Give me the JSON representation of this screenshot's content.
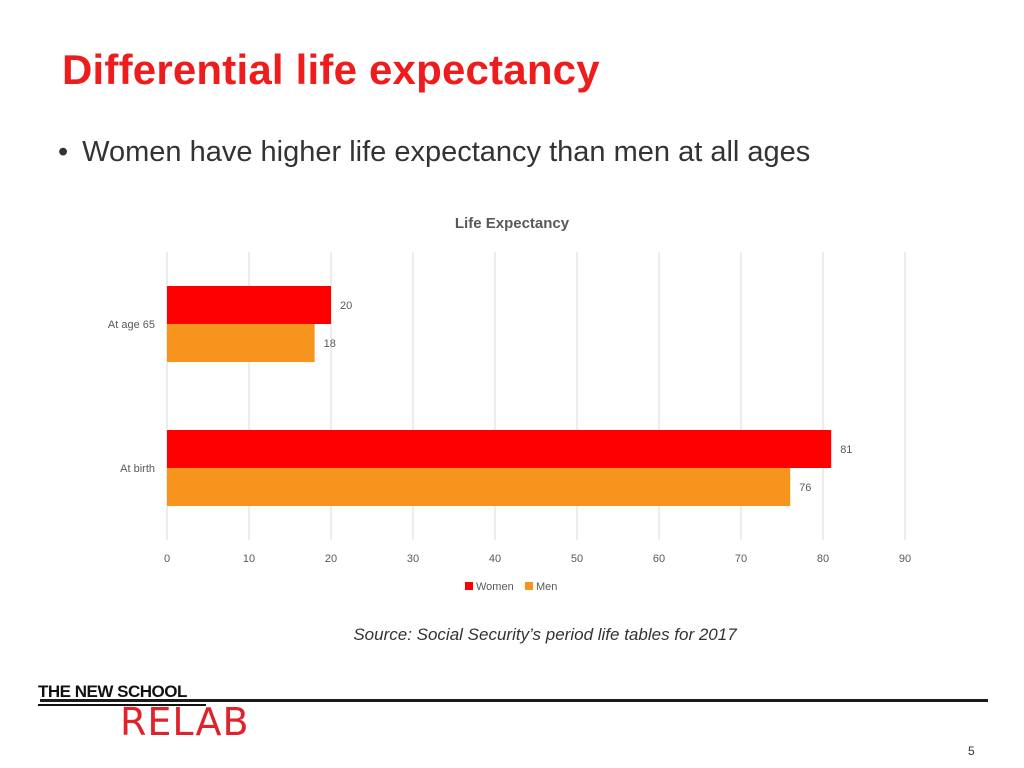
{
  "slide": {
    "title": "Differential life expectancy",
    "bullet": "Women have higher life expectancy than men at all ages",
    "bullet_marker": "•",
    "source": "Source: Social Security’s period life tables for 2017",
    "page_number": "5"
  },
  "logo": {
    "line1": "THE NEW SCHOOL",
    "line2": "RELAB"
  },
  "colors": {
    "title": "#ee1c1c",
    "women": "#ff0000",
    "men": "#f7941d",
    "grid": "#d9d9d9",
    "axis_text": "#595959"
  },
  "chart_data": {
    "type": "bar",
    "orientation": "horizontal",
    "title": "Life Expectancy",
    "categories": [
      "At age 65",
      "At birth"
    ],
    "series": [
      {
        "name": "Women",
        "values": [
          20,
          81
        ]
      },
      {
        "name": "Men",
        "values": [
          18,
          76
        ]
      }
    ],
    "xlim": [
      0,
      90
    ],
    "xticks": [
      0,
      10,
      20,
      30,
      40,
      50,
      60,
      70,
      80,
      90
    ],
    "grid": true,
    "legend": "bottom",
    "data_labels": true
  }
}
